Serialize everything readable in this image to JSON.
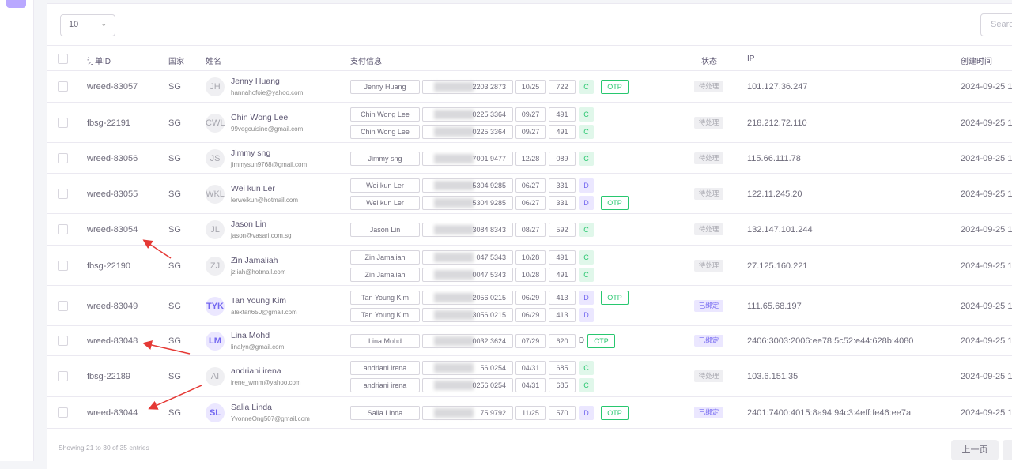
{
  "page_length": {
    "value": "10"
  },
  "search": {
    "placeholder": "Search"
  },
  "headers": {
    "order_id": "订单ID",
    "country": "国家",
    "name": "姓名",
    "payment": "支付信息",
    "status": "状态",
    "ip": "IP",
    "created": "创建时间"
  },
  "rows": [
    {
      "order_id": "wreed-83057",
      "country": "SG",
      "initials": "JH",
      "avatar_purple": false,
      "name": "Jenny Huang",
      "email": "hannahofoie@yahoo.com",
      "payments": [
        {
          "holder": "Jenny Huang",
          "card": "2203 2873",
          "exp": "10/25",
          "cvv": "722",
          "type": "C",
          "otp": true
        }
      ],
      "status": "待处理",
      "ip": "101.127.36.247",
      "created": "2024-09-25 1"
    },
    {
      "order_id": "fbsg-22191",
      "country": "SG",
      "initials": "CWL",
      "avatar_purple": false,
      "name": "Chin Wong Lee",
      "email": "99vegcuisine@gmail.com",
      "payments": [
        {
          "holder": "Chin Wong Lee",
          "card": "0225 3364",
          "exp": "09/27",
          "cvv": "491",
          "type": "C",
          "otp": false
        },
        {
          "holder": "Chin Wong Lee",
          "card": "0225 3364",
          "exp": "09/27",
          "cvv": "491",
          "type": "C",
          "otp": false
        }
      ],
      "status": "待处理",
      "ip": "218.212.72.110",
      "created": "2024-09-25 1"
    },
    {
      "order_id": "wreed-83056",
      "country": "SG",
      "initials": "JS",
      "avatar_purple": false,
      "name": "Jimmy sng",
      "email": "jimmysun9768@gmail.com",
      "payments": [
        {
          "holder": "Jimmy sng",
          "card": "7001 9477",
          "exp": "12/28",
          "cvv": "089",
          "type": "C",
          "otp": false
        }
      ],
      "status": "待处理",
      "ip": "115.66.111.78",
      "created": "2024-09-25 1"
    },
    {
      "order_id": "wreed-83055",
      "country": "SG",
      "initials": "WKL",
      "avatar_purple": false,
      "name": "Wei kun Ler",
      "email": "lerweikun@hotmail.com",
      "payments": [
        {
          "holder": "Wei kun Ler",
          "card": "5304 9285",
          "exp": "06/27",
          "cvv": "331",
          "type": "D",
          "otp": false
        },
        {
          "holder": "Wei kun Ler",
          "card": "5304 9285",
          "exp": "06/27",
          "cvv": "331",
          "type": "D",
          "otp": true
        }
      ],
      "status": "待处理",
      "ip": "122.11.245.20",
      "created": "2024-09-25 1"
    },
    {
      "order_id": "wreed-83054",
      "country": "SG",
      "initials": "JL",
      "avatar_purple": false,
      "name": "Jason Lin",
      "email": "jason@vasari.com.sg",
      "payments": [
        {
          "holder": "Jason Lin",
          "card": "3084 8343",
          "exp": "08/27",
          "cvv": "592",
          "type": "C",
          "otp": false
        }
      ],
      "status": "待处理",
      "ip": "132.147.101.244",
      "created": "2024-09-25 1"
    },
    {
      "order_id": "fbsg-22190",
      "country": "SG",
      "initials": "ZJ",
      "avatar_purple": false,
      "name": "Zin Jamaliah",
      "email": "jzliah@hotmail.com",
      "payments": [
        {
          "holder": "Zin Jamaliah",
          "card": "047 5343",
          "exp": "10/28",
          "cvv": "491",
          "type": "C",
          "otp": false
        },
        {
          "holder": "Zin Jamaliah",
          "card": "0047 5343",
          "exp": "10/28",
          "cvv": "491",
          "type": "C",
          "otp": false
        }
      ],
      "status": "待处理",
      "ip": "27.125.160.221",
      "created": "2024-09-25 1"
    },
    {
      "order_id": "wreed-83049",
      "country": "SG",
      "initials": "TYK",
      "avatar_purple": true,
      "name": "Tan Young Kim",
      "email": "alextan650@gmail.com",
      "payments": [
        {
          "holder": "Tan Young Kim",
          "card": "2056 0215",
          "exp": "06/29",
          "cvv": "413",
          "type": "D",
          "otp": true
        },
        {
          "holder": "Tan Young Kim",
          "card": "3056 0215",
          "exp": "06/29",
          "cvv": "413",
          "type": "D",
          "otp": false
        }
      ],
      "status": "已绑定",
      "ip": "111.65.68.197",
      "created": "2024-09-25 1"
    },
    {
      "order_id": "wreed-83048",
      "country": "SG",
      "initials": "LM",
      "avatar_purple": true,
      "name": "Lina Mohd",
      "email": "linalyn@gmail.com",
      "payments": [
        {
          "holder": "Lina Mohd",
          "card": "0032 3624",
          "exp": "07/29",
          "cvv": "620",
          "type": "D",
          "plain": true,
          "otp": true
        }
      ],
      "status": "已绑定",
      "ip": "2406:3003:2006:ee78:5c52:e44:628b:4080",
      "created": "2024-09-25 1"
    },
    {
      "order_id": "fbsg-22189",
      "country": "SG",
      "initials": "AI",
      "avatar_purple": false,
      "name": "andriani irena",
      "email": "irene_wmm@yahoo.com",
      "payments": [
        {
          "holder": "andriani irena",
          "card": "56 0254",
          "exp": "04/31",
          "cvv": "685",
          "type": "C",
          "otp": false
        },
        {
          "holder": "andriani irena",
          "card": "0256 0254",
          "exp": "04/31",
          "cvv": "685",
          "type": "C",
          "otp": false
        }
      ],
      "status": "待处理",
      "ip": "103.6.151.35",
      "created": "2024-09-25 1"
    },
    {
      "order_id": "wreed-83044",
      "country": "SG",
      "initials": "SL",
      "avatar_purple": true,
      "name": "Salia Linda",
      "email": "YvonneOng507@gmail.com",
      "payments": [
        {
          "holder": "Salia Linda",
          "card": "75 9792",
          "exp": "11/25",
          "cvv": "570",
          "type": "D",
          "otp": true
        }
      ],
      "status": "已绑定",
      "ip": "2401:7400:4015:8a94:94c3:4eff:fe46:ee7a",
      "created": "2024-09-25 1"
    }
  ],
  "otp_label": "OTP",
  "footer": {
    "info": "Showing 21 to 30 of 35 entries",
    "prev": "上一页"
  },
  "colors": {
    "accent": "#7367f0",
    "success": "#28c76f",
    "annotation_arrow": "#e53935"
  }
}
